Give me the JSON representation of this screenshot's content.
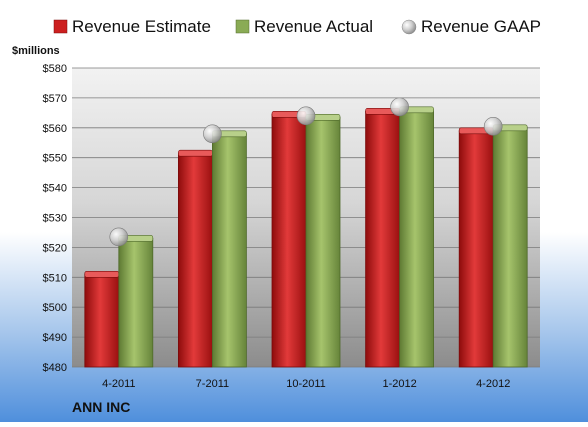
{
  "chart_data": {
    "type": "bar",
    "unit_label": "$millions",
    "footer_label": "ANN INC",
    "categories": [
      "4-2011",
      "7-2011",
      "10-2011",
      "1-2012",
      "4-2012"
    ],
    "series": [
      {
        "name": "Revenue Estimate",
        "type": "bar",
        "color": "#cc1f1f",
        "values": [
          511,
          551.5,
          564.5,
          565.5,
          559
        ]
      },
      {
        "name": "Revenue Actual",
        "type": "bar",
        "color": "#8aab55",
        "values": [
          523,
          558,
          563.5,
          566,
          560
        ]
      },
      {
        "name": "Revenue GAAP",
        "type": "marker",
        "color": "#c8c8c8",
        "values": [
          523.5,
          558,
          564,
          567,
          560.5
        ]
      }
    ],
    "y_ticks": [
      "$480",
      "$490",
      "$500",
      "$510",
      "$520",
      "$530",
      "$540",
      "$550",
      "$560",
      "$570",
      "$580"
    ],
    "ylim": [
      480,
      580
    ],
    "grid": true,
    "legend_position": "top"
  }
}
